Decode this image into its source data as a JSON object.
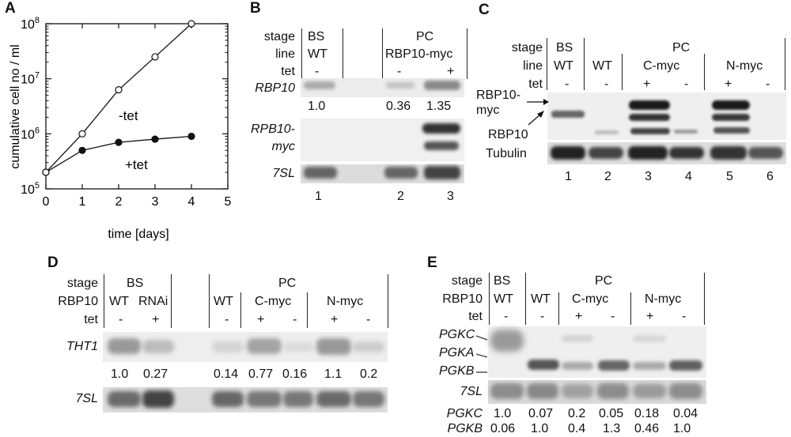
{
  "panelA": {
    "letter": "A",
    "chart_data": {
      "type": "line",
      "xlabel": "time [days]",
      "ylabel": "cumulative cell no / ml",
      "xlim": [
        0,
        5
      ],
      "ylim": [
        100000,
        100000000
      ],
      "yscale": "log",
      "x_ticks": [
        "0",
        "1",
        "2",
        "3",
        "4",
        "5"
      ],
      "y_ticks": [
        {
          "base": "10",
          "exp": "5"
        },
        {
          "base": "10",
          "exp": "6"
        },
        {
          "base": "10",
          "exp": "7"
        },
        {
          "base": "10",
          "exp": "8"
        }
      ],
      "series": [
        {
          "name": "-tet",
          "marker": "open-circle",
          "x": [
            0,
            1,
            2,
            3,
            4
          ],
          "y": [
            200000,
            1000000,
            6300000,
            25000000,
            100000000
          ]
        },
        {
          "name": "+tet",
          "marker": "filled-circle",
          "x": [
            0,
            1,
            2,
            3,
            4
          ],
          "y": [
            200000,
            500000,
            700000,
            800000,
            900000
          ]
        }
      ]
    }
  },
  "panelB": {
    "letter": "B",
    "hdr": {
      "stage": "stage",
      "line": "line",
      "tet": "tet"
    },
    "groups": [
      {
        "stage": "BS",
        "line": "WT",
        "tets": [
          "-"
        ]
      },
      {
        "stage": "PC",
        "line": "RBP10-myc",
        "tets": [
          "-",
          "+"
        ]
      }
    ],
    "rows": {
      "r1": "RBP10",
      "r2a": "RPB10-",
      "r2b": "myc",
      "r3": "7SL"
    },
    "quant": [
      "1.0",
      "0.36",
      "1.35"
    ],
    "lanes": [
      "1",
      "2",
      "3"
    ]
  },
  "panelC": {
    "letter": "C",
    "hdr": {
      "stage": "stage",
      "line": "line",
      "tet": "tet"
    },
    "stages": [
      "BS",
      "PC"
    ],
    "lines": [
      "WT",
      "WT",
      "C-myc",
      "N-myc"
    ],
    "tets": [
      "-",
      "-",
      "+",
      "-",
      "+",
      "-"
    ],
    "left_labels": {
      "myc1": "RBP10-",
      "myc2": "myc",
      "rbp": "RBP10",
      "tub": "Tubulin"
    },
    "lanes": [
      "1",
      "2",
      "3",
      "4",
      "5",
      "6"
    ]
  },
  "panelD": {
    "letter": "D",
    "hdr": {
      "stage": "stage",
      "line": "RBP10",
      "tet": "tet"
    },
    "stages": [
      "BS",
      "PC"
    ],
    "lines": [
      "WT",
      "RNAi",
      "WT",
      "C-myc",
      "N-myc"
    ],
    "tets": [
      "-",
      "+",
      "-",
      "+",
      "-",
      "+",
      "-"
    ],
    "rows": {
      "r1": "THT1",
      "r2": "7SL"
    },
    "quant": [
      "1.0",
      "0.27",
      "0.14",
      "0.77",
      "0.16",
      "1.1",
      "0.2"
    ]
  },
  "panelE": {
    "letter": "E",
    "hdr": {
      "stage": "stage",
      "line": "RBP10",
      "tet": "tet"
    },
    "stages": [
      "BS",
      "PC"
    ],
    "lines": [
      "WT",
      "WT",
      "C-myc",
      "N-myc"
    ],
    "tets": [
      "-",
      "-",
      "+",
      "-",
      "+",
      "-"
    ],
    "rows": {
      "pgkc": "PGKC",
      "pgka": "PGKA",
      "pgkb": "PGKB",
      "sl": "7SL"
    },
    "quant_rows": [
      {
        "label": "PGKC",
        "values": [
          "1.0",
          "0.07",
          "0.2",
          "0.05",
          "0.18",
          "0.04"
        ]
      },
      {
        "label": "PGKB",
        "values": [
          "0.06",
          "1.0",
          "0.4",
          "1.3",
          "0.46",
          "1.0"
        ]
      }
    ]
  }
}
